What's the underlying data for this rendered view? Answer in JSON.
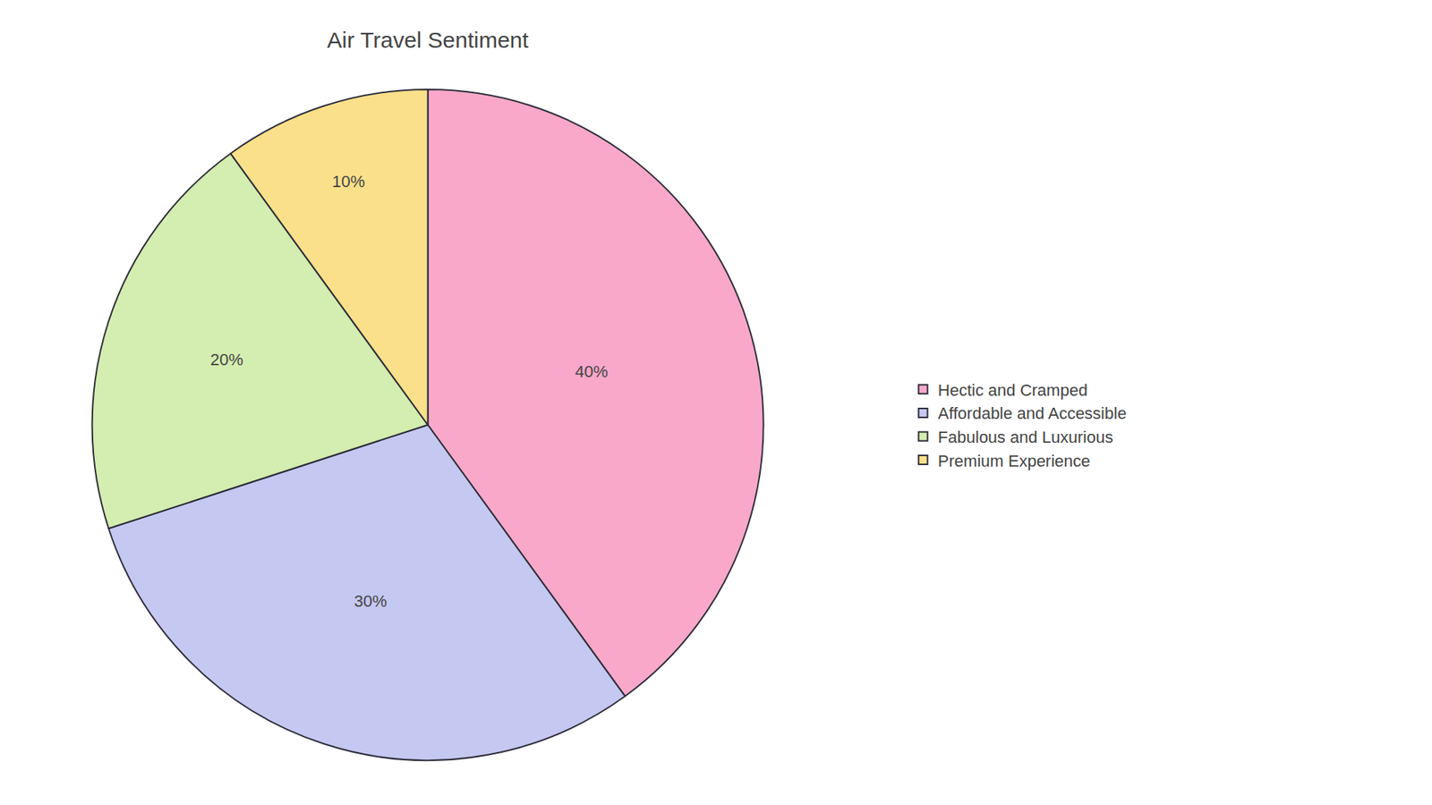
{
  "chart_data": {
    "type": "pie",
    "title": "Air Travel Sentiment",
    "categories": [
      "Hectic and Cramped",
      "Affordable and Accessible",
      "Fabulous and Luxurious",
      "Premium Experience"
    ],
    "values": [
      40,
      30,
      20,
      10
    ],
    "value_labels": [
      "40%",
      "30%",
      "20%",
      "10%"
    ],
    "colors": [
      "#F9A8C9",
      "#C5C8F0",
      "#D4EDB0",
      "#FAE08A"
    ],
    "data_labels": true,
    "legend": "right"
  }
}
